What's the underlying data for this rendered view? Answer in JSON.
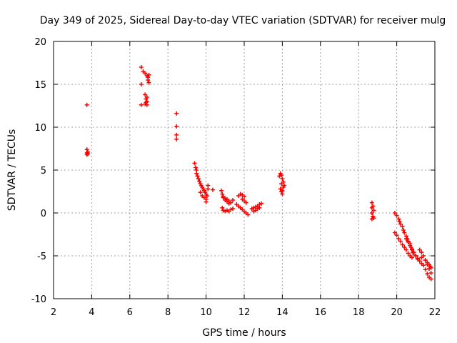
{
  "chart_data": {
    "type": "scatter",
    "title": "Day 349 of 2025, Sidereal Day-to-day VTEC variation (SDTVAR) for receiver mulg",
    "xlabel": "GPS time / hours",
    "ylabel": "SDTVAR / TECUs",
    "xlim": [
      2,
      22
    ],
    "ylim": [
      -10,
      20
    ],
    "xticks": [
      2,
      4,
      6,
      8,
      10,
      12,
      14,
      16,
      18,
      20,
      22
    ],
    "yticks": [
      -10,
      -5,
      0,
      5,
      10,
      15,
      20
    ],
    "xtick_labels": [
      "2",
      "4",
      "6",
      "8",
      "10",
      "12",
      "14",
      "16",
      "18",
      "20",
      "22"
    ],
    "ytick_labels": [
      "-10",
      "-5",
      "0",
      "5",
      "10",
      "15",
      "20"
    ],
    "grid": true,
    "marker": "plus",
    "color": "#ff0000",
    "series": [
      {
        "name": "SDTVAR",
        "x": [
          3.75,
          3.75,
          3.75,
          3.75,
          3.8,
          3.8,
          6.6,
          6.6,
          6.6,
          6.7,
          6.8,
          6.9,
          6.95,
          7.0,
          6.8,
          6.85,
          6.9,
          6.8,
          6.85,
          6.9,
          6.95,
          7.0,
          6.9,
          8.45,
          8.45,
          8.45,
          8.45,
          9.4,
          9.45,
          9.5,
          9.5,
          9.55,
          9.6,
          9.65,
          9.7,
          9.75,
          9.8,
          9.85,
          9.9,
          9.95,
          10.0,
          10.05,
          9.7,
          9.8,
          9.9,
          10.0,
          10.0,
          10.1,
          10.1,
          10.35,
          10.8,
          10.85,
          10.9,
          11.0,
          11.1,
          11.2,
          11.3,
          11.4,
          10.85,
          10.9,
          11.0,
          11.1,
          11.2,
          11.3,
          11.4,
          10.9,
          11.0,
          11.1,
          11.2,
          11.7,
          11.8,
          11.9,
          12.0,
          11.6,
          11.7,
          11.8,
          11.9,
          12.0,
          12.1,
          12.2,
          11.9,
          12.0,
          12.1,
          12.4,
          12.5,
          12.6,
          12.7,
          12.8,
          12.9,
          12.5,
          12.6,
          12.7,
          12.8,
          13.85,
          13.9,
          13.95,
          14.0,
          14.05,
          14.1,
          13.9,
          13.95,
          14.0,
          14.05,
          13.95,
          14.0,
          18.7,
          18.75,
          18.8,
          18.7,
          18.75,
          18.7,
          18.8,
          18.7,
          19.9,
          20.0,
          20.1,
          20.15,
          20.2,
          20.3,
          20.35,
          20.4,
          20.5,
          20.55,
          20.6,
          20.7,
          20.75,
          20.8,
          19.9,
          20.0,
          20.1,
          20.2,
          20.3,
          20.4,
          20.5,
          20.6,
          20.7,
          20.8,
          20.85,
          20.9,
          21.0,
          20.5,
          20.6,
          20.7,
          20.8,
          20.9,
          21.0,
          21.1,
          21.2,
          21.3,
          21.2,
          21.3,
          21.4,
          21.5,
          21.6,
          21.7,
          21.8,
          21.4,
          21.5,
          21.6,
          21.7,
          21.8,
          21.5,
          21.6,
          21.7,
          21.75,
          21.8,
          21.0,
          21.1,
          21.3
        ],
        "y": [
          12.6,
          7.4,
          7.0,
          6.8,
          6.9,
          7.1,
          17.0,
          15.0,
          12.6,
          16.5,
          16.3,
          16.0,
          15.5,
          15.2,
          13.8,
          13.3,
          13.0,
          12.7,
          12.9,
          13.5,
          15.8,
          16.1,
          12.6,
          11.6,
          10.1,
          9.1,
          8.6,
          5.8,
          5.3,
          5.0,
          4.6,
          4.3,
          4.0,
          3.7,
          3.4,
          3.2,
          3.0,
          2.8,
          2.6,
          2.4,
          2.2,
          2.0,
          2.4,
          2.0,
          1.8,
          1.6,
          1.3,
          3.2,
          2.8,
          2.7,
          2.6,
          2.2,
          1.8,
          1.5,
          1.6,
          1.4,
          1.2,
          1.5,
          0.6,
          0.3,
          0.2,
          0.3,
          0.2,
          0.4,
          0.5,
          1.9,
          1.7,
          1.3,
          1.1,
          2.0,
          2.2,
          2.1,
          1.9,
          1.0,
          0.8,
          0.6,
          0.4,
          0.2,
          0.0,
          -0.2,
          1.6,
          1.4,
          1.2,
          0.5,
          0.6,
          0.7,
          0.8,
          1.0,
          1.1,
          0.2,
          0.3,
          0.5,
          0.6,
          4.3,
          4.6,
          4.4,
          4.0,
          3.6,
          3.2,
          2.8,
          2.5,
          2.2,
          3.0,
          3.4,
          2.6,
          1.2,
          0.8,
          0.3,
          0.0,
          -0.4,
          -0.7,
          -0.6,
          0.6,
          0.0,
          -0.3,
          -0.7,
          -1.0,
          -1.3,
          -1.6,
          -2.0,
          -2.3,
          -2.7,
          -3.0,
          -3.3,
          -3.6,
          -4.0,
          -4.3,
          -2.3,
          -2.6,
          -3.0,
          -3.3,
          -3.7,
          -4.0,
          -4.3,
          -4.7,
          -5.0,
          -5.2,
          -4.6,
          -4.8,
          -5.0,
          -3.0,
          -3.4,
          -3.8,
          -4.2,
          -4.6,
          -5.0,
          -5.3,
          -5.6,
          -5.9,
          -4.3,
          -4.6,
          -5.0,
          -5.5,
          -6.0,
          -6.5,
          -7.0,
          -6.1,
          -6.6,
          -7.1,
          -7.5,
          -7.7,
          -5.5,
          -5.8,
          -6.0,
          -6.2,
          -6.4,
          -5.0,
          -5.4,
          -5.2
        ]
      }
    ]
  }
}
